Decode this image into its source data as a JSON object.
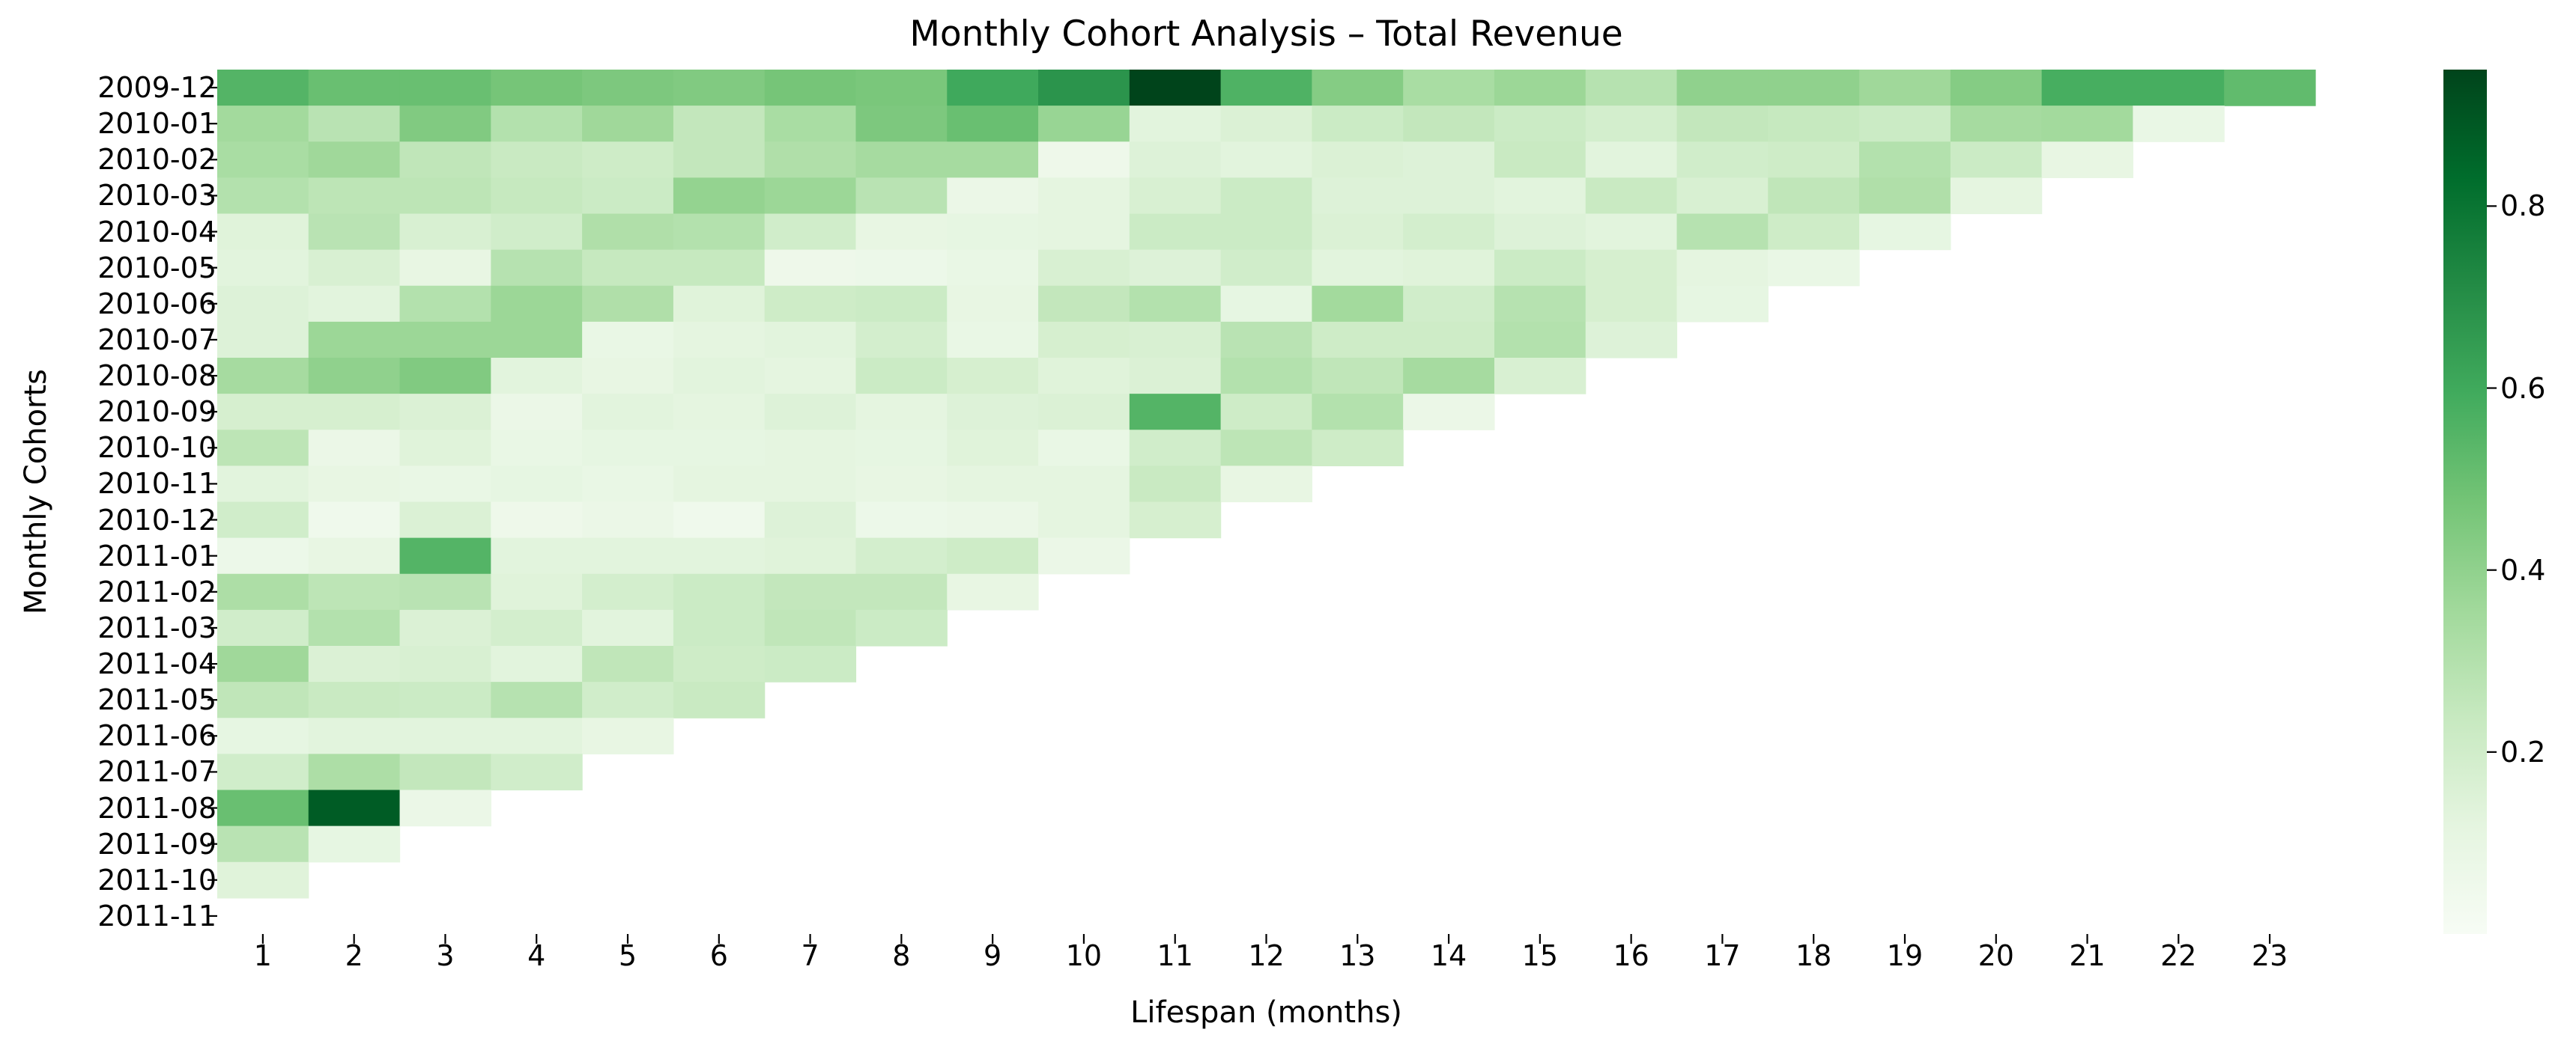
{
  "chart_data": {
    "type": "heatmap",
    "title": "Monthly Cohort Analysis – Total Revenue",
    "xlabel": "Lifespan (months)",
    "ylabel": "Monthly Cohorts",
    "colormap": "Greens",
    "colormap_stops": [
      "#f7fcf5",
      "#e5f5e0",
      "#c7e9c0",
      "#a1d99b",
      "#74c476",
      "#41ab5d",
      "#238b45",
      "#006d2c",
      "#00441b"
    ],
    "value_range": [
      0.0,
      0.95
    ],
    "colorbar_ticks": [
      "0.2",
      "0.4",
      "0.6",
      "0.8"
    ],
    "colorbar_tick_values": [
      0.2,
      0.4,
      0.6,
      0.8
    ],
    "x_labels": [
      "1",
      "2",
      "3",
      "4",
      "5",
      "6",
      "7",
      "8",
      "9",
      "10",
      "11",
      "12",
      "13",
      "14",
      "15",
      "16",
      "17",
      "18",
      "19",
      "20",
      "21",
      "22",
      "23"
    ],
    "y_labels": [
      "2009-12",
      "2010-01",
      "2010-02",
      "2010-03",
      "2010-04",
      "2010-05",
      "2010-06",
      "2010-07",
      "2010-08",
      "2010-09",
      "2010-10",
      "2010-11",
      "2010-12",
      "2011-01",
      "2011-02",
      "2011-03",
      "2011-04",
      "2011-05",
      "2011-06",
      "2011-07",
      "2011-08",
      "2011-09",
      "2011-10",
      "2011-11"
    ],
    "values": [
      [
        0.55,
        0.5,
        0.5,
        0.47,
        0.45,
        0.44,
        0.47,
        0.46,
        0.6,
        0.68,
        0.95,
        0.56,
        0.43,
        0.33,
        0.37,
        0.29,
        0.4,
        0.4,
        0.36,
        0.43,
        0.58,
        0.58,
        0.52
      ],
      [
        0.35,
        0.28,
        0.44,
        0.3,
        0.36,
        0.25,
        0.33,
        0.45,
        0.5,
        0.38,
        0.13,
        0.16,
        0.22,
        0.25,
        0.22,
        0.19,
        0.25,
        0.24,
        0.22,
        0.34,
        0.35,
        0.09
      ],
      [
        0.33,
        0.36,
        0.26,
        0.23,
        0.21,
        0.25,
        0.31,
        0.34,
        0.34,
        0.06,
        0.15,
        0.13,
        0.16,
        0.15,
        0.23,
        0.13,
        0.2,
        0.21,
        0.3,
        0.22,
        0.1
      ],
      [
        0.3,
        0.27,
        0.27,
        0.24,
        0.22,
        0.39,
        0.37,
        0.28,
        0.08,
        0.12,
        0.17,
        0.22,
        0.15,
        0.15,
        0.13,
        0.23,
        0.17,
        0.26,
        0.31,
        0.12
      ],
      [
        0.14,
        0.28,
        0.17,
        0.2,
        0.31,
        0.3,
        0.2,
        0.1,
        0.11,
        0.12,
        0.22,
        0.22,
        0.16,
        0.19,
        0.15,
        0.13,
        0.29,
        0.21,
        0.11
      ],
      [
        0.13,
        0.17,
        0.1,
        0.29,
        0.24,
        0.24,
        0.06,
        0.07,
        0.09,
        0.17,
        0.15,
        0.2,
        0.13,
        0.14,
        0.22,
        0.18,
        0.12,
        0.09
      ],
      [
        0.15,
        0.13,
        0.3,
        0.37,
        0.31,
        0.14,
        0.21,
        0.22,
        0.1,
        0.25,
        0.3,
        0.11,
        0.35,
        0.2,
        0.29,
        0.18,
        0.11
      ],
      [
        0.15,
        0.37,
        0.37,
        0.37,
        0.09,
        0.12,
        0.13,
        0.19,
        0.09,
        0.18,
        0.17,
        0.28,
        0.21,
        0.21,
        0.3,
        0.15
      ],
      [
        0.34,
        0.4,
        0.44,
        0.13,
        0.1,
        0.13,
        0.12,
        0.22,
        0.18,
        0.14,
        0.16,
        0.3,
        0.26,
        0.34,
        0.17
      ],
      [
        0.18,
        0.18,
        0.16,
        0.08,
        0.13,
        0.12,
        0.15,
        0.12,
        0.15,
        0.16,
        0.55,
        0.21,
        0.3,
        0.08
      ],
      [
        0.27,
        0.08,
        0.14,
        0.09,
        0.11,
        0.11,
        0.12,
        0.11,
        0.14,
        0.09,
        0.2,
        0.27,
        0.21
      ],
      [
        0.13,
        0.1,
        0.09,
        0.11,
        0.09,
        0.12,
        0.12,
        0.1,
        0.12,
        0.12,
        0.23,
        0.1
      ],
      [
        0.2,
        0.05,
        0.16,
        0.06,
        0.08,
        0.05,
        0.15,
        0.07,
        0.08,
        0.12,
        0.18
      ],
      [
        0.07,
        0.1,
        0.55,
        0.13,
        0.13,
        0.13,
        0.14,
        0.19,
        0.21,
        0.08
      ],
      [
        0.32,
        0.27,
        0.28,
        0.14,
        0.19,
        0.22,
        0.25,
        0.25,
        0.1
      ],
      [
        0.2,
        0.3,
        0.16,
        0.19,
        0.13,
        0.22,
        0.26,
        0.22
      ],
      [
        0.36,
        0.16,
        0.17,
        0.13,
        0.26,
        0.21,
        0.22
      ],
      [
        0.26,
        0.23,
        0.22,
        0.29,
        0.2,
        0.23
      ],
      [
        0.11,
        0.13,
        0.13,
        0.13,
        0.1
      ],
      [
        0.2,
        0.32,
        0.25,
        0.2
      ],
      [
        0.5,
        0.88,
        0.08
      ],
      [
        0.28,
        0.11
      ],
      [
        0.14
      ],
      []
    ]
  }
}
